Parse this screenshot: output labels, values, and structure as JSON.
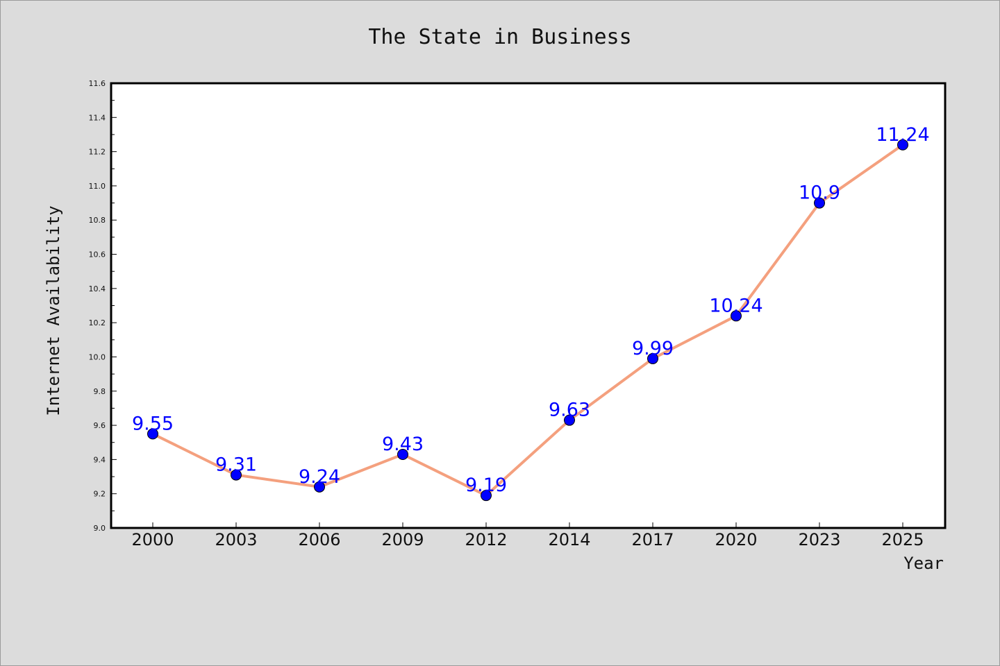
{
  "chart_data": {
    "type": "line",
    "title": "The State in Business",
    "xlabel": "Year",
    "ylabel": "Internet Availability",
    "categories": [
      "2000",
      "2003",
      "2006",
      "2009",
      "2012",
      "2014",
      "2017",
      "2020",
      "2023",
      "2025"
    ],
    "series": [
      {
        "values": [
          9.55,
          9.31,
          9.24,
          9.43,
          9.19,
          9.63,
          9.99,
          10.24,
          10.9,
          11.24
        ],
        "data_labels": [
          "9.55",
          "9.31",
          "9.24",
          "9.43",
          "9.19",
          "9.63",
          "9.99",
          "10.24",
          "10.9",
          "11.24"
        ],
        "line_color": "#f4a07e",
        "marker_color": "#0000ff"
      }
    ],
    "ylim": [
      9.0,
      11.6
    ],
    "yticks": [
      "9.0",
      "9.2",
      "9.4",
      "9.6",
      "9.8",
      "10.0",
      "10.2",
      "10.4",
      "10.6",
      "10.8",
      "11.0",
      "11.2",
      "11.4",
      "11.6"
    ],
    "grid": false,
    "legend": "none",
    "colors": {
      "background": "#dcdcdc",
      "plot_background": "#ffffff"
    }
  }
}
